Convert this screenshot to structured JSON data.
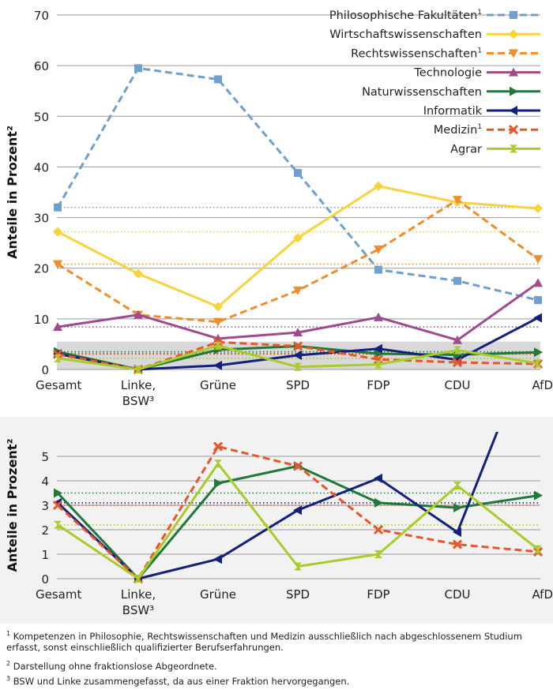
{
  "chart_data": [
    {
      "type": "line",
      "ylabel": "Anteile in Prozent²",
      "ylim": [
        0,
        70
      ],
      "yticks": [
        0,
        10,
        20,
        30,
        40,
        50,
        60,
        70
      ],
      "categories": [
        "Gesamt",
        "Linke, BSW³",
        "Grüne",
        "SPD",
        "FDP",
        "CDU",
        "AfD"
      ],
      "grid": "horizontal",
      "legend": "top-right",
      "highlight_band": [
        0,
        5.5
      ],
      "series": [
        {
          "name": "Philosophische Fakultäten",
          "sup": "1",
          "color": "#6f9fd0",
          "dashed": true,
          "marker": "square",
          "values": [
            32.0,
            59.5,
            57.3,
            38.8,
            19.7,
            17.5,
            13.7
          ],
          "reference": 32.0
        },
        {
          "name": "Wirtschaftswissenschaften",
          "sup": "",
          "color": "#f9d23c",
          "dashed": false,
          "marker": "diamond",
          "values": [
            27.2,
            18.9,
            12.4,
            26.0,
            36.2,
            33.0,
            31.8
          ],
          "reference": 27.2
        },
        {
          "name": "Rechtswissenschaften",
          "sup": "1",
          "color": "#f28c28",
          "dashed": true,
          "marker": "triangle-down",
          "values": [
            20.8,
            10.8,
            9.4,
            15.6,
            23.7,
            33.5,
            21.8
          ],
          "reference": 20.8
        },
        {
          "name": "Technologie",
          "sup": "",
          "color": "#a04a8e",
          "dashed": false,
          "marker": "triangle-up",
          "values": [
            8.4,
            10.8,
            6.1,
            7.3,
            10.3,
            5.8,
            17.1
          ],
          "reference": 8.4
        },
        {
          "name": "Naturwissenschaften",
          "sup": "",
          "color": "#1f7a3a",
          "dashed": false,
          "marker": "triangle-right",
          "values": [
            3.5,
            0,
            3.9,
            4.6,
            3.1,
            2.9,
            3.4
          ],
          "reference": 3.5
        },
        {
          "name": "Informatik",
          "sup": "",
          "color": "#14207a",
          "dashed": false,
          "marker": "triangle-left",
          "values": [
            3.1,
            0,
            0.8,
            2.8,
            4.1,
            1.9,
            10.2
          ],
          "reference": 3.1
        },
        {
          "name": "Medizin",
          "sup": "1",
          "color": "#e8552a",
          "dashed": true,
          "marker": "x",
          "values": [
            3.0,
            0,
            5.4,
            4.6,
            2.0,
            1.4,
            1.1
          ],
          "reference": 3.0
        },
        {
          "name": "Agrar",
          "sup": "",
          "color": "#a8cc2a",
          "dashed": false,
          "marker": "hourglass",
          "values": [
            2.2,
            0,
            4.7,
            0.5,
            1.0,
            3.8,
            1.2
          ],
          "reference": 2.2
        }
      ]
    },
    {
      "type": "line",
      "ylabel": "Anteile in Prozent²",
      "ylim": [
        0,
        6
      ],
      "yticks": [
        0,
        1,
        2,
        3,
        4,
        5
      ],
      "categories": [
        "Gesamt",
        "Linke, BSW³",
        "Grüne",
        "SPD",
        "FDP",
        "CDU",
        "AfD"
      ],
      "grid": "horizontal",
      "legend": "none",
      "series_ref": [
        "Naturwissenschaften",
        "Informatik",
        "Medizin",
        "Agrar"
      ]
    }
  ],
  "footnotes": [
    {
      "mark": "1",
      "text": "Kompetenzen in Philosophie, Rechtswissenschaften und Medizin ausschließlich nach abgeschlossenem Studium erfasst, sonst einschließlich qualifizierter Berufserfahrungen."
    },
    {
      "mark": "2",
      "text": "Darstellung ohne fraktionslose Abgeordnete."
    },
    {
      "mark": "3",
      "text": "BSW und Linke zusammengefasst, da aus einer Fraktion hervorgegangen."
    }
  ]
}
